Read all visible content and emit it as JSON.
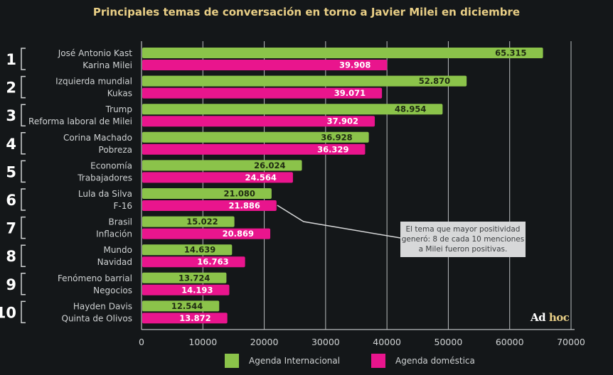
{
  "chart_data": {
    "type": "bar",
    "orientation": "horizontal",
    "title": "Principales temas de conversación en torno a Javier Milei en diciembre",
    "xlabel": "",
    "ylabel": "",
    "xlim": [
      0,
      70000
    ],
    "x_ticks": [
      "0",
      "10000",
      "20000",
      "30000",
      "40000",
      "50000",
      "60000",
      "70000"
    ],
    "x_tick_values": [
      0,
      10000,
      20000,
      30000,
      40000,
      50000,
      60000,
      70000
    ],
    "grid": true,
    "legend_position": "bottom",
    "series": [
      {
        "name": "Agenda Internacional",
        "color": "#8bc34a",
        "label_color": "#1f2a12"
      },
      {
        "name": "Agenda doméstica",
        "color": "#e9158d",
        "label_color": "#ffffff"
      }
    ],
    "groups": [
      {
        "rank": "1",
        "international": {
          "topic": "José Antonio Kast",
          "value": 65315,
          "label": "65.315"
        },
        "domestic": {
          "topic": "Karina Milei",
          "value": 39908,
          "label": "39.908"
        }
      },
      {
        "rank": "2",
        "international": {
          "topic": "Izquierda mundial",
          "value": 52870,
          "label": "52.870"
        },
        "domestic": {
          "topic": "Kukas",
          "value": 39071,
          "label": "39.071"
        }
      },
      {
        "rank": "3",
        "international": {
          "topic": "Trump",
          "value": 48954,
          "label": "48.954"
        },
        "domestic": {
          "topic": "Reforma laboral de Milei",
          "value": 37902,
          "label": "37.902"
        }
      },
      {
        "rank": "4",
        "international": {
          "topic": "Corina Machado",
          "value": 36928,
          "label": "36.928"
        },
        "domestic": {
          "topic": "Pobreza",
          "value": 36329,
          "label": "36.329"
        }
      },
      {
        "rank": "5",
        "international": {
          "topic": "Economía",
          "value": 26024,
          "label": "26.024"
        },
        "domestic": {
          "topic": "Trabajadores",
          "value": 24564,
          "label": "24.564"
        }
      },
      {
        "rank": "6",
        "international": {
          "topic": "Lula da Silva",
          "value": 21080,
          "label": "21.080"
        },
        "domestic": {
          "topic": "F-16",
          "value": 21886,
          "label": "21.886"
        }
      },
      {
        "rank": "7",
        "international": {
          "topic": "Brasil",
          "value": 15022,
          "label": "15.022"
        },
        "domestic": {
          "topic": "Inflación",
          "value": 20869,
          "label": "20.869"
        }
      },
      {
        "rank": "8",
        "international": {
          "topic": "Mundo",
          "value": 14639,
          "label": "14.639"
        },
        "domestic": {
          "topic": "Navidad",
          "value": 16763,
          "label": "16.763"
        }
      },
      {
        "rank": "9",
        "international": {
          "topic": "Fenómeno barrial",
          "value": 13724,
          "label": "13.724"
        },
        "domestic": {
          "topic": "Negocios",
          "value": 14193,
          "label": "14.193"
        }
      },
      {
        "rank": "10",
        "international": {
          "topic": "Hayden Davis",
          "value": 12544,
          "label": "12.544"
        },
        "domestic": {
          "topic": "Quinta de Olivos",
          "value": 13872,
          "label": "13.872"
        }
      }
    ],
    "annotation": {
      "text": "El tema que mayor positividad generó: 8 de cada 10 menciones a Milei fueron positivas.",
      "target_topic": "F-16",
      "target_value": 21886
    }
  },
  "branding": {
    "part1": "Ad",
    "part2": "hoc",
    "color1": "#ffffff",
    "color2": "#e9cf86"
  },
  "colors": {
    "background": "#141719",
    "title": "#e9cf86",
    "grid": "#b9bcbe",
    "text": "#cfd2d3"
  }
}
